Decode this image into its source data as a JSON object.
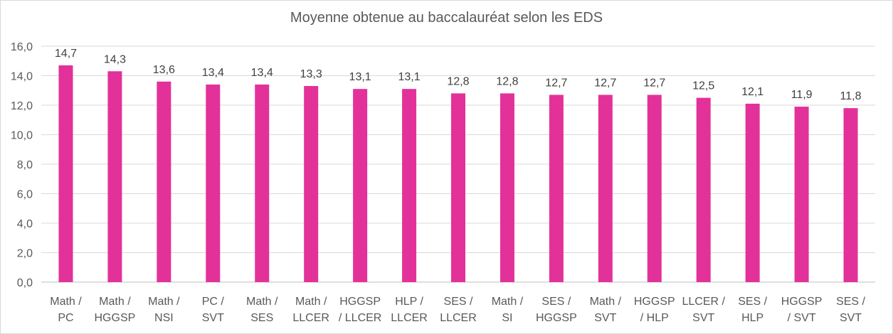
{
  "chart_data": {
    "type": "bar",
    "title": "Moyenne obtenue au baccalauréat selon les EDS",
    "xlabel": "",
    "ylabel": "",
    "ylim": [
      0,
      16
    ],
    "yticks": [
      "0,0",
      "2,0",
      "4,0",
      "6,0",
      "8,0",
      "10,0",
      "12,0",
      "14,0",
      "16,0"
    ],
    "grid": true,
    "legend": "none",
    "bar_color": "#e3319a",
    "categories": [
      [
        "Math /",
        "PC"
      ],
      [
        "Math /",
        "HGGSP"
      ],
      [
        "Math /",
        "NSI"
      ],
      [
        "PC  /",
        "SVT"
      ],
      [
        "Math /",
        "SES"
      ],
      [
        "Math /",
        "LLCER"
      ],
      [
        "HGGSP",
        "/ LLCER"
      ],
      [
        "HLP /",
        "LLCER"
      ],
      [
        "SES /",
        "LLCER"
      ],
      [
        "Math /",
        "SI"
      ],
      [
        "SES /",
        "HGGSP"
      ],
      [
        "Math /",
        "SVT"
      ],
      [
        "HGGSP",
        "/ HLP"
      ],
      [
        "LLCER /",
        "SVT"
      ],
      [
        "SES /",
        "HLP"
      ],
      [
        "HGGSP",
        "/ SVT"
      ],
      [
        "SES /",
        "SVT"
      ]
    ],
    "values": [
      14.7,
      14.3,
      13.6,
      13.4,
      13.4,
      13.3,
      13.1,
      13.1,
      12.8,
      12.8,
      12.7,
      12.7,
      12.7,
      12.5,
      12.1,
      11.9,
      11.8
    ],
    "data_labels": [
      "14,7",
      "14,3",
      "13,6",
      "13,4",
      "13,4",
      "13,3",
      "13,1",
      "13,1",
      "12,8",
      "12,8",
      "12,7",
      "12,7",
      "12,7",
      "12,5",
      "12,1",
      "11,9",
      "11,8"
    ]
  }
}
